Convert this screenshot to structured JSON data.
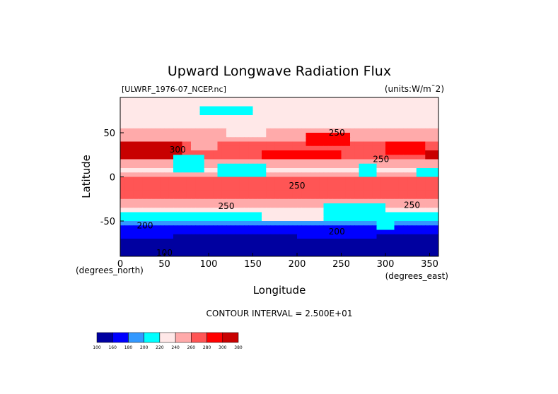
{
  "chart_data": {
    "type": "heatmap",
    "title": "Upward Longwave Radiation Flux",
    "subtitle_left": "[ULWRF_1976-07_NCEP.nc]",
    "subtitle_right": "(units:W/m¯2)",
    "xlabel": "Longitude",
    "ylabel": "Latitude",
    "x_unit_label": "(degrees_east)",
    "y_unit_label": "(degrees_north)",
    "xlim": [
      0,
      360
    ],
    "ylim": [
      -90,
      90
    ],
    "x_ticks": [
      0,
      50,
      100,
      150,
      200,
      250,
      300,
      350
    ],
    "y_ticks": [
      -50,
      0,
      50
    ],
    "contour_interval_text": "CONTOUR INTERVAL = 2.500E+01",
    "contour_labels": [
      {
        "text": "300",
        "lon": 65,
        "lat": 31
      },
      {
        "text": "250",
        "lon": 245,
        "lat": 50
      },
      {
        "text": "250",
        "lon": 295,
        "lat": 20
      },
      {
        "text": "250",
        "lon": 200,
        "lat": -10
      },
      {
        "text": "250",
        "lon": 120,
        "lat": -33
      },
      {
        "text": "250",
        "lon": 330,
        "lat": -32
      },
      {
        "text": "200",
        "lon": 28,
        "lat": -55
      },
      {
        "text": "200",
        "lon": 245,
        "lat": -62
      },
      {
        "text": "100",
        "lon": 50,
        "lat": -86
      }
    ],
    "colorbar": {
      "levels": [
        "100",
        "160",
        "180",
        "200",
        "220",
        "240",
        "260",
        "280",
        "300",
        "380"
      ],
      "colors": [
        "#0000a0",
        "#0000ff",
        "#3399ff",
        "#00ffff",
        "#ffe8e8",
        "#ffaaaa",
        "#ff5555",
        "#ff0000",
        "#c80000"
      ]
    },
    "zonal_profile": [
      {
        "lat": 90,
        "value": 225
      },
      {
        "lat": 80,
        "value": 235
      },
      {
        "lat": 70,
        "value": 232
      },
      {
        "lat": 60,
        "value": 236
      },
      {
        "lat": 50,
        "value": 245
      },
      {
        "lat": 40,
        "value": 262
      },
      {
        "lat": 30,
        "value": 278
      },
      {
        "lat": 20,
        "value": 265
      },
      {
        "lat": 10,
        "value": 235
      },
      {
        "lat": 5,
        "value": 238
      },
      {
        "lat": 0,
        "value": 262
      },
      {
        "lat": -10,
        "value": 272
      },
      {
        "lat": -20,
        "value": 270
      },
      {
        "lat": -30,
        "value": 250
      },
      {
        "lat": -40,
        "value": 220
      },
      {
        "lat": -50,
        "value": 198
      },
      {
        "lat": -60,
        "value": 170
      },
      {
        "lat": -70,
        "value": 150
      },
      {
        "lat": -80,
        "value": 130
      },
      {
        "lat": -90,
        "value": 115
      }
    ],
    "features": [
      {
        "lon0": 0,
        "lon1": 70,
        "lat0": 18,
        "lat1": 38,
        "value": 320
      },
      {
        "lon0": 345,
        "lon1": 360,
        "lat0": 18,
        "lat1": 32,
        "value": 310
      },
      {
        "lon0": 80,
        "lon1": 110,
        "lat0": 28,
        "lat1": 40,
        "value": 240
      },
      {
        "lon0": 60,
        "lon1": 95,
        "lat0": 5,
        "lat1": 25,
        "value": 215
      },
      {
        "lon0": 110,
        "lon1": 165,
        "lat0": 0,
        "lat1": 15,
        "value": 205
      },
      {
        "lon0": 270,
        "lon1": 290,
        "lat0": 2,
        "lat1": 14,
        "value": 205
      },
      {
        "lon0": 335,
        "lon1": 360,
        "lat0": 2,
        "lat1": 12,
        "value": 205
      },
      {
        "lon0": 160,
        "lon1": 250,
        "lat0": 20,
        "lat1": 32,
        "value": 282
      },
      {
        "lon0": 210,
        "lon1": 260,
        "lat0": 36,
        "lat1": 48,
        "value": 280
      },
      {
        "lon0": 300,
        "lon1": 345,
        "lat0": 26,
        "lat1": 40,
        "value": 282
      },
      {
        "lon0": 120,
        "lon1": 165,
        "lat0": 45,
        "lat1": 60,
        "value": 232
      },
      {
        "lon0": 255,
        "lon1": 310,
        "lat0": 55,
        "lat1": 68,
        "value": 235
      },
      {
        "lon0": 0,
        "lon1": 25,
        "lat0": 55,
        "lat1": 70,
        "value": 238
      },
      {
        "lon0": 90,
        "lon1": 150,
        "lat0": 70,
        "lat1": 82,
        "value": 205
      },
      {
        "lon0": 230,
        "lon1": 300,
        "lat0": -45,
        "lat1": -30,
        "value": 215
      },
      {
        "lon0": 290,
        "lon1": 310,
        "lat0": -58,
        "lat1": -38,
        "value": 212
      },
      {
        "lon0": 160,
        "lon1": 230,
        "lat0": -48,
        "lat1": -38,
        "value": 225
      },
      {
        "lon0": 0,
        "lon1": 60,
        "lat0": -70,
        "lat1": -58,
        "value": 172
      },
      {
        "lon0": 200,
        "lon1": 290,
        "lat0": -72,
        "lat1": -62,
        "value": 168
      }
    ],
    "grid": false,
    "legend_placement": "bottom-left"
  }
}
